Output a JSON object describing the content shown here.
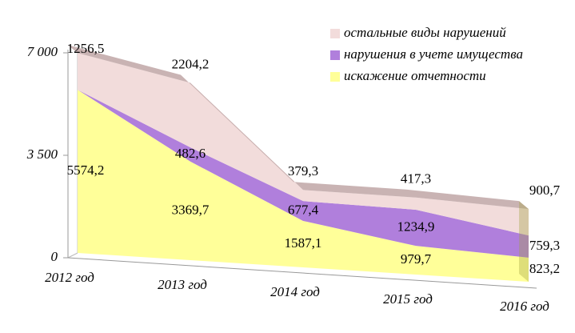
{
  "chart_data": {
    "type": "stacked-area",
    "categories": [
      "2012 год",
      "2013 год",
      "2014 год",
      "2015 год",
      "2016 год"
    ],
    "series": [
      {
        "name": "искажение  отчетности",
        "color": "#ffff99",
        "values": [
          5574.2,
          3369.7,
          1587.1,
          979.7,
          823.2
        ],
        "value_labels": [
          "5574,2",
          "3369,7",
          "1587,1",
          "979,7",
          "823,2"
        ]
      },
      {
        "name": "нарушения в учете имущества",
        "color": "#b07fdc",
        "values": [
          0,
          482.6,
          677.4,
          1234.9,
          759.3
        ],
        "value_labels": [
          null,
          "482,6",
          "677,4",
          "1234,9",
          "759,3"
        ]
      },
      {
        "name": "остальные виды нарушений",
        "color": "#f2dcdb",
        "values": [
          1256.5,
          2204.2,
          379.3,
          417.3,
          900.7
        ],
        "value_labels": [
          "1256,5",
          "2204,2",
          "379,3",
          "417,3",
          "900,7"
        ]
      }
    ],
    "ylim": [
      0,
      7000
    ],
    "yticks": [
      0,
      {
        "value": 3500,
        "label": "3 500"
      },
      {
        "value": 7000,
        "label": "7 000"
      }
    ],
    "legend": "top-right"
  }
}
